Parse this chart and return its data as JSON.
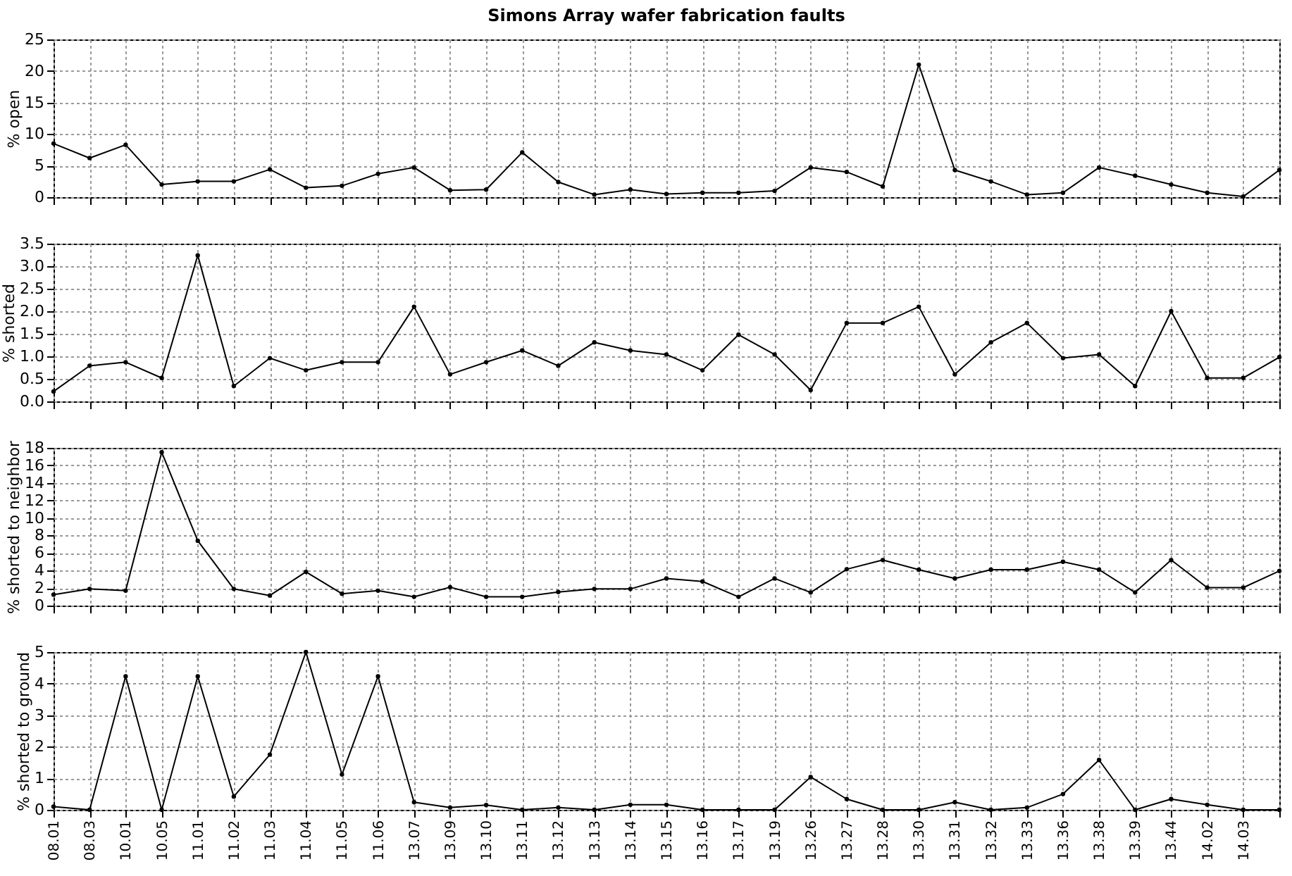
{
  "chart_data": [
    {
      "type": "line",
      "title": "Simons Array wafer fabrication faults",
      "ylabel": "% open",
      "categories": [
        "08.01",
        "08.03",
        "10.01",
        "10.05",
        "11.01",
        "11.02",
        "11.03",
        "11.04",
        "11.05",
        "11.06",
        "13.07",
        "13.09",
        "13.10",
        "13.11",
        "13.12",
        "13.13",
        "13.14",
        "13.15",
        "13.16",
        "13.17",
        "13.19",
        "13.26",
        "13.27",
        "13.28",
        "13.30",
        "13.31",
        "13.32",
        "13.33",
        "13.36",
        "13.38",
        "13.39",
        "13.44",
        "14.02",
        "14.03",
        null
      ],
      "series": [
        {
          "color": "#000000",
          "values": [
            8.5,
            6.2,
            8.3,
            2.0,
            2.5,
            2.5,
            4.4,
            1.5,
            1.8,
            3.7,
            4.7,
            1.1,
            1.2,
            7.1,
            2.4,
            0.4,
            1.2,
            0.5,
            0.7,
            0.7,
            1.0,
            4.7,
            4.0,
            1.7,
            21.0,
            4.3,
            2.5,
            0.4,
            0.7,
            4.7,
            3.4,
            2.0,
            0.7,
            0.1,
            4.3
          ]
        }
      ],
      "ylim": [
        0,
        25
      ],
      "yticks": [
        0,
        5,
        10,
        15,
        20,
        25
      ],
      "grid": true,
      "marker": "circle",
      "tick_labels": "y"
    },
    {
      "type": "line",
      "ylabel": "% shorted",
      "categories": [
        "08.01",
        "08.03",
        "10.01",
        "10.05",
        "11.01",
        "11.02",
        "11.03",
        "11.04",
        "11.05",
        "11.06",
        "13.07",
        "13.09",
        "13.10",
        "13.11",
        "13.12",
        "13.13",
        "13.14",
        "13.15",
        "13.16",
        "13.17",
        "13.19",
        "13.26",
        "13.27",
        "13.28",
        "13.30",
        "13.31",
        "13.32",
        "13.33",
        "13.36",
        "13.38",
        "13.39",
        "13.44",
        "14.02",
        "14.03",
        null
      ],
      "series": [
        {
          "color": "#000000",
          "values": [
            0.22,
            0.79,
            0.87,
            0.52,
            3.24,
            0.34,
            0.96,
            0.69,
            0.87,
            0.87,
            2.1,
            0.6,
            0.87,
            1.13,
            0.79,
            1.31,
            1.13,
            1.04,
            0.69,
            1.48,
            1.04,
            0.25,
            1.74,
            1.74,
            2.1,
            0.6,
            1.31,
            1.74,
            0.96,
            1.04,
            0.34,
            2.0,
            0.52,
            0.52,
            0.98
          ]
        }
      ],
      "ylim": [
        0,
        3.5
      ],
      "yticks": [
        {
          "value": 0,
          "label": "0.0"
        },
        {
          "value": 0.5,
          "label": "0.5"
        },
        {
          "value": 1,
          "label": "1.0"
        },
        {
          "value": 1.5,
          "label": "1.5"
        },
        {
          "value": 2,
          "label": "2.0"
        },
        {
          "value": 2.5,
          "label": "2.5"
        },
        {
          "value": 3,
          "label": "3.0"
        },
        {
          "value": 3.5,
          "label": "3.5"
        }
      ],
      "grid": true,
      "marker": "circle",
      "tick_labels": "y"
    },
    {
      "type": "line",
      "ylabel": "% shorted to neighbor",
      "categories": [
        "08.01",
        "08.03",
        "10.01",
        "10.05",
        "11.01",
        "11.02",
        "11.03",
        "11.04",
        "11.05",
        "11.06",
        "13.07",
        "13.09",
        "13.10",
        "13.11",
        "13.12",
        "13.13",
        "13.14",
        "13.15",
        "13.16",
        "13.17",
        "13.19",
        "13.26",
        "13.27",
        "13.28",
        "13.30",
        "13.31",
        "13.32",
        "13.33",
        "13.36",
        "13.38",
        "13.39",
        "13.44",
        "14.02",
        "14.03",
        null
      ],
      "series": [
        {
          "color": "#000000",
          "values": [
            1.25,
            1.9,
            1.7,
            17.5,
            7.4,
            1.9,
            1.15,
            3.85,
            1.35,
            1.7,
            1.0,
            2.1,
            1.0,
            1.0,
            1.55,
            1.9,
            1.9,
            3.1,
            2.75,
            1.0,
            3.1,
            1.5,
            4.15,
            5.2,
            4.1,
            3.1,
            4.1,
            4.1,
            5.0,
            4.1,
            1.5,
            5.2,
            2.05,
            2.05,
            3.95
          ]
        }
      ],
      "ylim": [
        0,
        18
      ],
      "yticks": [
        0,
        2,
        4,
        6,
        8,
        10,
        12,
        14,
        16,
        18
      ],
      "grid": true,
      "marker": "circle",
      "tick_labels": "y"
    },
    {
      "type": "line",
      "ylabel": "% shorted to ground",
      "categories": [
        "08.01",
        "08.03",
        "10.01",
        "10.05",
        "11.01",
        "11.02",
        "11.03",
        "11.04",
        "11.05",
        "11.06",
        "13.07",
        "13.09",
        "13.10",
        "13.11",
        "13.12",
        "13.13",
        "13.14",
        "13.15",
        "13.16",
        "13.17",
        "13.19",
        "13.26",
        "13.27",
        "13.28",
        "13.30",
        "13.31",
        "13.32",
        "13.33",
        "13.36",
        "13.38",
        "13.39",
        "13.44",
        "14.02",
        "14.03",
        null
      ],
      "series": [
        {
          "color": "#000000",
          "values": [
            0.1,
            0,
            4.23,
            0,
            4.23,
            0.42,
            1.75,
            5.0,
            1.12,
            4.23,
            0.24,
            0.07,
            0.15,
            0,
            0.07,
            0,
            0.16,
            0.16,
            0,
            0,
            0,
            1.04,
            0.34,
            0,
            0,
            0.24,
            0,
            0.07,
            0.5,
            1.58,
            0,
            0.34,
            0.16,
            0,
            0
          ]
        }
      ],
      "ylim": [
        0,
        5
      ],
      "yticks": [
        0,
        1,
        2,
        3,
        4,
        5
      ],
      "grid": true,
      "marker": "circle"
    }
  ]
}
